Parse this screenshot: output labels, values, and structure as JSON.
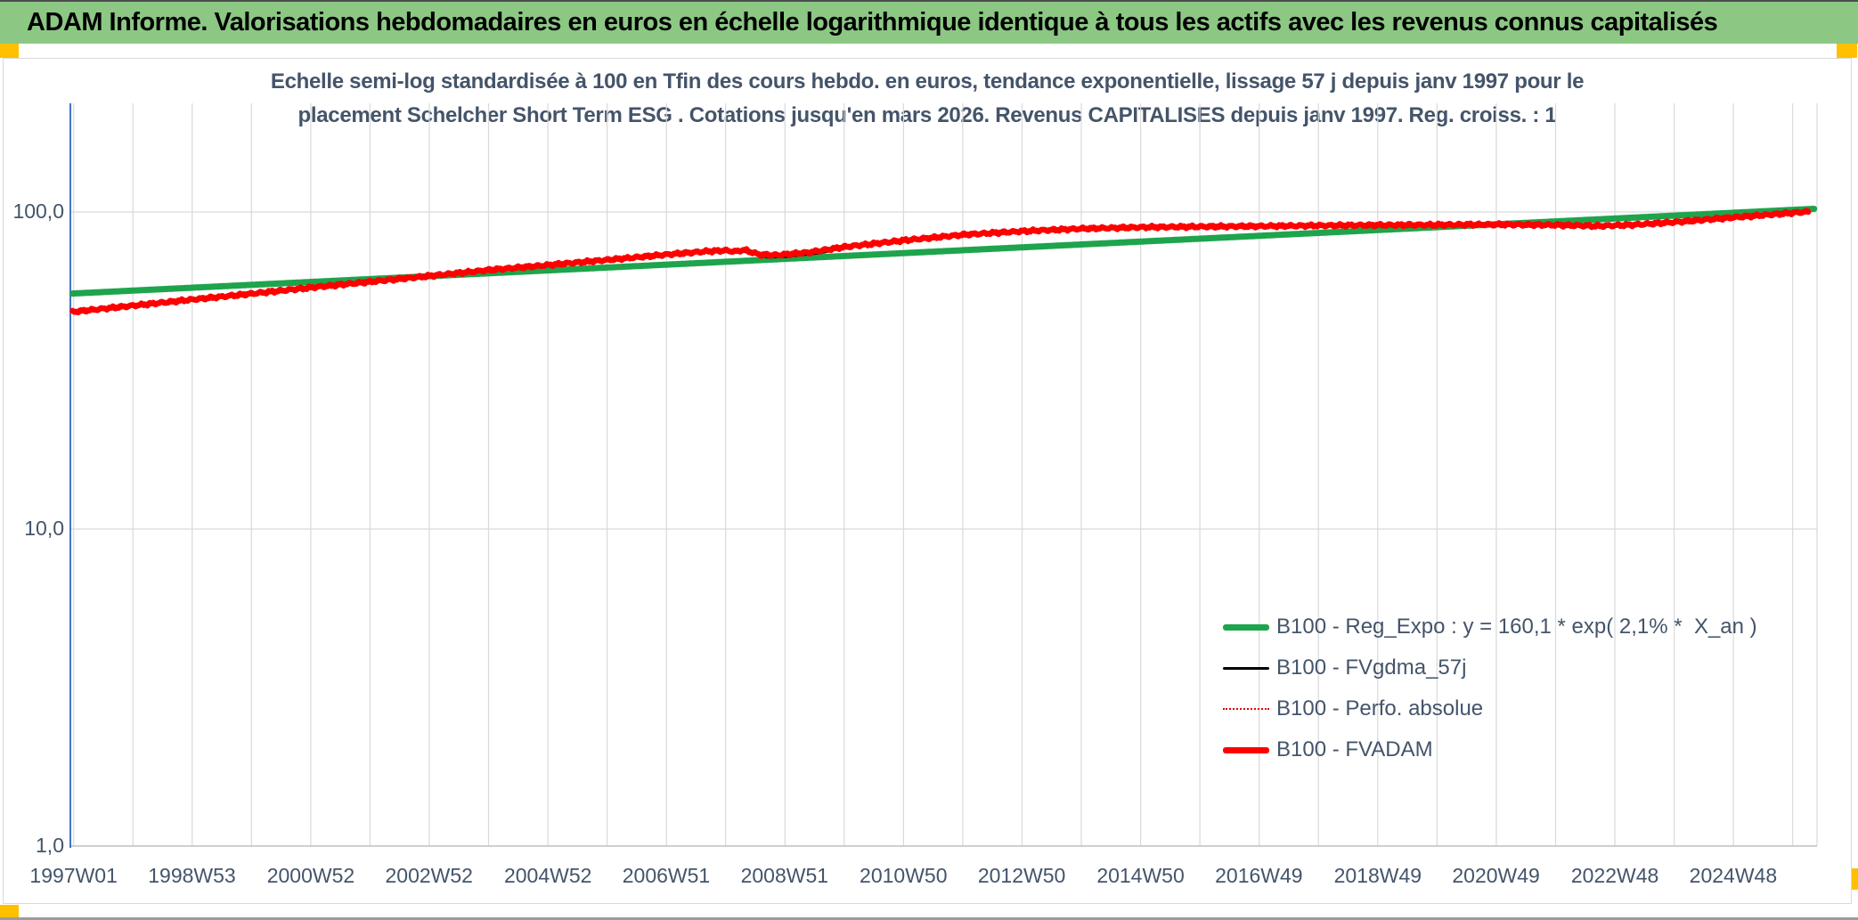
{
  "header": {
    "title": "ADAM Informe. Valorisations hebdomadaires en euros en échelle logarithmique identique à tous les actifs avec les revenus connus capitalisés"
  },
  "colors": {
    "header_bg": "#8CC884",
    "selection_handle": "#FFC000",
    "title_text": "#44546A",
    "grid": "#D9D9D9",
    "y_axis_line": "#4472C4",
    "x_axis_line": "#BFBFBF"
  },
  "chart_data": {
    "type": "line",
    "title_lines": [
      "Echelle semi-log standardisée à 100 en Tfin des cours hebdo. en euros, tendance exponentielle, lissage 57 j depuis janv 1997 pour le",
      "placement Schelcher Short Term ESG . Cotations jusqu'en mars 2026. Revenus CAPITALISES depuis janv 1997. Reg. croiss. : 1"
    ],
    "y_scale": "log10",
    "ylim": [
      1,
      200
    ],
    "xlim": [
      1996.98,
      2026.35
    ],
    "grid": true,
    "legend_position": "right-center-inside",
    "y_ticks": [
      {
        "label": "100,0",
        "value": 100
      },
      {
        "label": "10,0",
        "value": 10
      },
      {
        "label": "1,0",
        "value": 1
      }
    ],
    "x_ticks": [
      {
        "label": "1997W01",
        "year": 1997.02
      },
      {
        "label": "1998W53",
        "year": 1999.01
      },
      {
        "label": "2000W52",
        "year": 2001.01
      },
      {
        "label": "2002W52",
        "year": 2003.0
      },
      {
        "label": "2004W52",
        "year": 2005.0
      },
      {
        "label": "2006W51",
        "year": 2006.99
      },
      {
        "label": "2008W51",
        "year": 2008.98
      },
      {
        "label": "2010W50",
        "year": 2010.98
      },
      {
        "label": "2012W50",
        "year": 2012.97
      },
      {
        "label": "2014W50",
        "year": 2014.97
      },
      {
        "label": "2016W49",
        "year": 2016.96
      },
      {
        "label": "2018W49",
        "year": 2018.96
      },
      {
        "label": "2020W49",
        "year": 2020.95
      },
      {
        "label": "2022W48",
        "year": 2022.95
      },
      {
        "label": "2024W48",
        "year": 2024.94
      }
    ],
    "series": [
      {
        "key": "reg_expo",
        "name": "B100 - Reg_Expo : y = 160,1 * exp( 2,1% *  X_an )",
        "color": "#1EA44C",
        "width": 7,
        "style": "solid",
        "noise": false,
        "points": [
          [
            1997.0,
            55.3
          ],
          [
            2026.3,
            102.3
          ]
        ]
      },
      {
        "key": "fvgdma_57j",
        "name": "B100 - FVgdma_57j",
        "color": "#000000",
        "width": 2.5,
        "style": "solid",
        "noise": false,
        "points": [
          [
            1997.0,
            48.6
          ],
          [
            1998,
            50.7
          ],
          [
            1999,
            52.9
          ],
          [
            2000,
            55.2
          ],
          [
            2001,
            57.7
          ],
          [
            2002,
            60.2
          ],
          [
            2003,
            62.8
          ],
          [
            2004,
            65.6
          ],
          [
            2005,
            68.0
          ],
          [
            2006,
            70.6
          ],
          [
            2007,
            73.3
          ],
          [
            2007.8,
            75.0
          ],
          [
            2008.25,
            75.2
          ],
          [
            2008.5,
            73.5
          ],
          [
            2008.7,
            71.8
          ],
          [
            2009.0,
            72.2
          ],
          [
            2009.6,
            74.2
          ],
          [
            2010,
            77.2
          ],
          [
            2011,
            81.2
          ],
          [
            2012,
            84.7
          ],
          [
            2013,
            86.9
          ],
          [
            2014,
            88.5
          ],
          [
            2015,
            89.4
          ],
          [
            2016,
            89.8
          ],
          [
            2017,
            90.1
          ],
          [
            2018,
            90.5
          ],
          [
            2019,
            90.8
          ],
          [
            2020,
            91.0
          ],
          [
            2021,
            91.2
          ],
          [
            2022,
            90.8
          ],
          [
            2022.8,
            90.2
          ],
          [
            2023.3,
            91.1
          ],
          [
            2024,
            92.9
          ],
          [
            2025,
            96.2
          ],
          [
            2026.2,
            100.1
          ]
        ]
      },
      {
        "key": "perfo_absolue",
        "name": "B100 - Perfo. absolue",
        "color": "#E00000",
        "width": 2,
        "style": "dotted",
        "noise": false,
        "points": [
          [
            1997.0,
            48.4
          ],
          [
            1997.5,
            49.5
          ],
          [
            1998,
            50.6
          ],
          [
            1999,
            52.9
          ],
          [
            2000,
            55.2
          ],
          [
            2001,
            57.7
          ],
          [
            2002,
            60.2
          ],
          [
            2003,
            62.8
          ],
          [
            2004,
            65.6
          ],
          [
            2005,
            68.0
          ],
          [
            2006,
            70.6
          ],
          [
            2007,
            73.4
          ],
          [
            2007.7,
            75.2
          ],
          [
            2008.0,
            75.6
          ],
          [
            2008.15,
            75.0
          ],
          [
            2008.3,
            76.0
          ],
          [
            2008.55,
            73.4
          ],
          [
            2008.85,
            73.1
          ],
          [
            2009.4,
            74.6
          ],
          [
            2010,
            77.6
          ],
          [
            2011,
            81.4
          ],
          [
            2012,
            84.8
          ],
          [
            2013,
            87.0
          ],
          [
            2014,
            88.6
          ],
          [
            2015,
            89.5
          ],
          [
            2016,
            89.9
          ],
          [
            2017,
            90.2
          ],
          [
            2018,
            90.6
          ],
          [
            2019,
            90.9
          ],
          [
            2020,
            91.1
          ],
          [
            2021,
            91.3
          ],
          [
            2022,
            90.9
          ],
          [
            2022.7,
            90.3
          ],
          [
            2023.3,
            91.2
          ],
          [
            2024,
            93.0
          ],
          [
            2025,
            96.3
          ],
          [
            2026.2,
            100.2
          ]
        ]
      },
      {
        "key": "fvadam",
        "name": "B100 - FVADAM",
        "color": "#FE0000",
        "width": 6.5,
        "style": "solid",
        "noise": true,
        "points": [
          [
            1997.0,
            48.4
          ],
          [
            1997.5,
            49.5
          ],
          [
            1998,
            50.6
          ],
          [
            1999,
            52.9
          ],
          [
            2000,
            55.2
          ],
          [
            2001,
            57.7
          ],
          [
            2002,
            60.2
          ],
          [
            2003,
            62.8
          ],
          [
            2004,
            65.6
          ],
          [
            2005,
            68.0
          ],
          [
            2006,
            70.6
          ],
          [
            2007,
            73.4
          ],
          [
            2007.7,
            75.2
          ],
          [
            2008.0,
            75.6
          ],
          [
            2008.15,
            75.0
          ],
          [
            2008.3,
            76.0
          ],
          [
            2008.55,
            73.4
          ],
          [
            2008.85,
            73.1
          ],
          [
            2009.4,
            74.6
          ],
          [
            2010,
            77.6
          ],
          [
            2011,
            81.4
          ],
          [
            2012,
            84.8
          ],
          [
            2013,
            87.0
          ],
          [
            2014,
            88.6
          ],
          [
            2015,
            89.5
          ],
          [
            2016,
            89.9
          ],
          [
            2017,
            90.2
          ],
          [
            2018,
            90.6
          ],
          [
            2019,
            90.9
          ],
          [
            2020,
            91.1
          ],
          [
            2021,
            91.3
          ],
          [
            2022,
            90.9
          ],
          [
            2022.7,
            90.3
          ],
          [
            2023.3,
            91.2
          ],
          [
            2024,
            93.0
          ],
          [
            2025,
            96.3
          ],
          [
            2026.2,
            100.2
          ]
        ]
      }
    ]
  }
}
